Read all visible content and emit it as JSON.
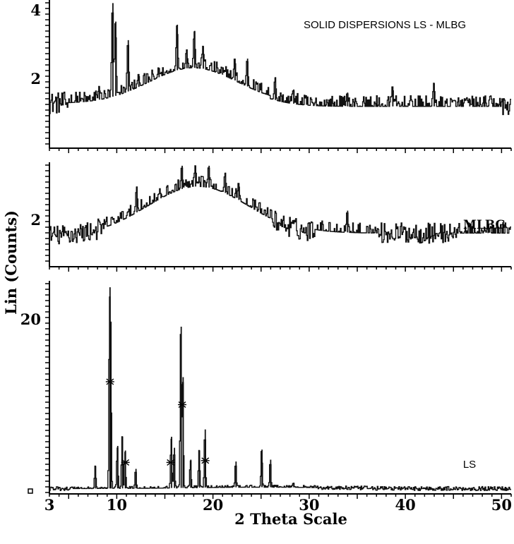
{
  "chart_data": [
    {
      "type": "line",
      "panel": "top",
      "label": "SOLID DISPERSIONS LS - MLBG",
      "x_range": [
        3,
        51
      ],
      "y_range": [
        0,
        4.3
      ],
      "y_ticks": [
        "2",
        "4"
      ],
      "peaks": [
        {
          "x": 8.2,
          "y": 1.5
        },
        {
          "x": 9.6,
          "y": 4.2
        },
        {
          "x": 9.9,
          "y": 3.6
        },
        {
          "x": 11.2,
          "y": 3.0
        },
        {
          "x": 12.3,
          "y": 1.9
        },
        {
          "x": 14.4,
          "y": 2.1
        },
        {
          "x": 16.3,
          "y": 3.5
        },
        {
          "x": 17.3,
          "y": 2.7
        },
        {
          "x": 18.1,
          "y": 3.3
        },
        {
          "x": 19.0,
          "y": 2.8
        },
        {
          "x": 21.0,
          "y": 2.1
        },
        {
          "x": 22.3,
          "y": 2.4
        },
        {
          "x": 23.6,
          "y": 2.4
        },
        {
          "x": 26.5,
          "y": 1.8
        },
        {
          "x": 28.4,
          "y": 1.4
        },
        {
          "x": 34.0,
          "y": 1.3
        },
        {
          "x": 38.7,
          "y": 1.5
        },
        {
          "x": 43.0,
          "y": 1.6
        },
        {
          "x": 46.7,
          "y": 1.1
        }
      ]
    },
    {
      "type": "line",
      "panel": "middle",
      "label": "MLBG",
      "x_range": [
        3,
        51
      ],
      "y_range": [
        0,
        2.9
      ],
      "y_ticks": [
        "2"
      ],
      "peaks": [
        {
          "x": 12.1,
          "y": 2.2
        },
        {
          "x": 14.6,
          "y": 2.0
        },
        {
          "x": 16.8,
          "y": 2.8
        },
        {
          "x": 18.2,
          "y": 2.8
        },
        {
          "x": 19.6,
          "y": 2.8
        },
        {
          "x": 21.3,
          "y": 2.6
        },
        {
          "x": 22.7,
          "y": 2.3
        },
        {
          "x": 34.0,
          "y": 1.5
        },
        {
          "x": 48.6,
          "y": 1.0
        }
      ]
    },
    {
      "type": "line",
      "panel": "bottom",
      "label": "LS",
      "x_range": [
        3,
        51
      ],
      "y_range": [
        0,
        23
      ],
      "y_ticks": [
        "0",
        "20"
      ],
      "peaks": [
        {
          "x": 7.8,
          "y": 2.8
        },
        {
          "x": 9.3,
          "y": 22.3
        },
        {
          "x": 9.4,
          "y": 18.5
        },
        {
          "x": 10.1,
          "y": 5.0
        },
        {
          "x": 10.6,
          "y": 6.0
        },
        {
          "x": 10.9,
          "y": 4.5
        },
        {
          "x": 12.0,
          "y": 2.5
        },
        {
          "x": 15.7,
          "y": 6.0
        },
        {
          "x": 16.0,
          "y": 4.8
        },
        {
          "x": 16.7,
          "y": 18.0
        },
        {
          "x": 16.9,
          "y": 12.5
        },
        {
          "x": 17.7,
          "y": 3.5
        },
        {
          "x": 18.6,
          "y": 4.5
        },
        {
          "x": 19.2,
          "y": 6.8
        },
        {
          "x": 22.4,
          "y": 3.3
        },
        {
          "x": 25.1,
          "y": 4.6
        },
        {
          "x": 26.0,
          "y": 3.5
        },
        {
          "x": 28.4,
          "y": 1.0
        }
      ],
      "markers": [
        {
          "x": 9.3,
          "y": 12.0
        },
        {
          "x": 10.9,
          "y": 3.2
        },
        {
          "x": 15.6,
          "y": 3.2
        },
        {
          "x": 16.8,
          "y": 9.5
        },
        {
          "x": 19.2,
          "y": 3.4
        }
      ]
    }
  ],
  "axes": {
    "x_title": "2  Theta Scale",
    "y_title": "Lin (Counts)",
    "x_tick_labels": [
      {
        "v": 3,
        "t": "3"
      },
      {
        "v": 10,
        "t": "10"
      },
      {
        "v": 20,
        "t": "20"
      },
      {
        "v": 30,
        "t": "30"
      },
      {
        "v": 40,
        "t": "40"
      },
      {
        "v": 50,
        "t": "50"
      }
    ]
  }
}
